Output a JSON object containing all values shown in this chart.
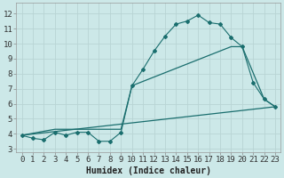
{
  "title": "",
  "xlabel": "Humidex (Indice chaleur)",
  "ylabel": "",
  "background_color": "#cce8e8",
  "grid_color": "#b8d4d4",
  "line_color": "#1a6e6e",
  "xlim": [
    -0.5,
    23.5
  ],
  "ylim": [
    2.8,
    12.7
  ],
  "yticks": [
    3,
    4,
    5,
    6,
    7,
    8,
    9,
    10,
    11,
    12
  ],
  "xticks": [
    0,
    1,
    2,
    3,
    4,
    5,
    6,
    7,
    8,
    9,
    10,
    11,
    12,
    13,
    14,
    15,
    16,
    17,
    18,
    19,
    20,
    21,
    22,
    23
  ],
  "curve1_x": [
    0,
    1,
    2,
    3,
    4,
    5,
    6,
    7,
    8,
    9,
    10,
    11,
    12,
    13,
    14,
    15,
    16,
    17,
    18,
    19,
    20,
    21,
    22,
    23
  ],
  "curve1_y": [
    3.9,
    3.7,
    3.6,
    4.1,
    3.9,
    4.1,
    4.1,
    3.5,
    3.5,
    4.1,
    7.2,
    8.3,
    9.5,
    10.5,
    11.3,
    11.5,
    11.9,
    11.4,
    11.3,
    10.4,
    9.8,
    7.4,
    6.3,
    5.8
  ],
  "curve2_x": [
    0,
    3,
    9,
    10,
    19,
    20,
    22,
    23
  ],
  "curve2_y": [
    3.9,
    4.3,
    4.3,
    7.2,
    9.8,
    9.8,
    6.3,
    5.8
  ],
  "curve3_x": [
    0,
    23
  ],
  "curve3_y": [
    3.9,
    5.8
  ],
  "xlabel_fontsize": 7,
  "tick_fontsize": 6.5
}
